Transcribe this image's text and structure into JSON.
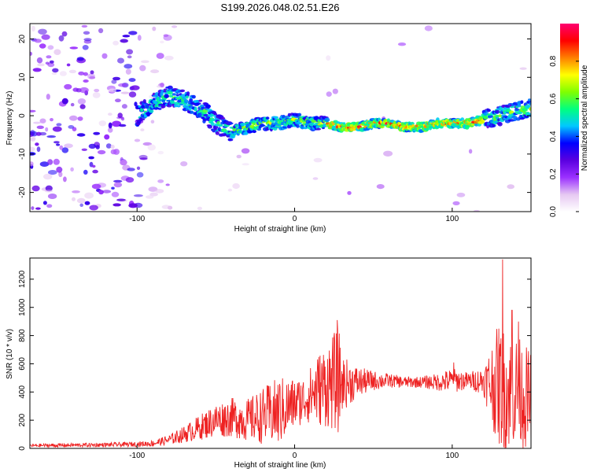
{
  "title": "S199.2026.048.02.51.E26",
  "colors": {
    "snr_line": "#ee2222",
    "spectrum_base": "#8a2be2",
    "frame": "#000000",
    "background": "#ffffff"
  },
  "chart_data": [
    {
      "id": "spectrogram",
      "type": "heatmap",
      "title": "",
      "xlabel": "Height of straight line (km)",
      "ylabel": "Frequency (Hz)",
      "xlim": [
        -168,
        150
      ],
      "ylim": [
        -25,
        24
      ],
      "x_ticks": [
        -100,
        0,
        100
      ],
      "y_ticks": [
        -20,
        -10,
        0,
        10,
        20
      ],
      "colorbar": {
        "label": "Normalized spectral amplitude",
        "range": [
          0,
          1
        ],
        "ticks": [
          "0.0",
          "0.2",
          "0.4",
          "0.6",
          "0.8"
        ],
        "stops": [
          "#ffffff",
          "#e6c8f2",
          "#9b30ff",
          "#5a00e0",
          "#0000ff",
          "#00c8ff",
          "#00ff80",
          "#80ff00",
          "#ffff00",
          "#ff8000",
          "#ff0000",
          "#ff0070"
        ]
      },
      "ridge": {
        "x": [
          -100,
          -90,
          -80,
          -70,
          -60,
          -50,
          -40,
          -30,
          -20,
          -10,
          0,
          10,
          20,
          30,
          40,
          50,
          60,
          70,
          80,
          90,
          100,
          110,
          120,
          130,
          140,
          150
        ],
        "y": [
          0,
          3,
          5,
          4,
          2,
          -2,
          -4,
          -3,
          -2,
          -2,
          -1,
          -2,
          -2,
          -3,
          -3,
          -2,
          -2,
          -3,
          -3,
          -2,
          -2,
          -2,
          -1,
          0,
          1,
          2
        ]
      }
    },
    {
      "id": "snr",
      "type": "line",
      "title": "",
      "xlabel": "Height of straight line (km)",
      "ylabel": "SNR (10 * v/v)",
      "xlim": [
        -168,
        150
      ],
      "ylim": [
        0,
        1350
      ],
      "x_ticks": [
        -100,
        0,
        100
      ],
      "y_ticks": [
        0,
        200,
        400,
        600,
        800,
        1000,
        1200
      ],
      "series": [
        {
          "name": "SNR",
          "x": [
            -168,
            -150,
            -120,
            -100,
            -90,
            -80,
            -70,
            -60,
            -50,
            -40,
            -30,
            -20,
            -10,
            0,
            5,
            10,
            15,
            20,
            25,
            28,
            30,
            40,
            50,
            60,
            70,
            80,
            90,
            100,
            110,
            120,
            125,
            130,
            135,
            140,
            145,
            150
          ],
          "mean": [
            20,
            22,
            25,
            30,
            35,
            60,
            100,
            150,
            200,
            220,
            200,
            230,
            260,
            320,
            340,
            380,
            420,
            450,
            470,
            480,
            460,
            470,
            480,
            480,
            470,
            470,
            470,
            480,
            480,
            480,
            460,
            450,
            400,
            420,
            380,
            330
          ],
          "spread": [
            12,
            14,
            15,
            18,
            22,
            35,
            60,
            90,
            120,
            140,
            150,
            200,
            250,
            180,
            170,
            200,
            260,
            300,
            350,
            380,
            200,
            110,
            70,
            50,
            40,
            40,
            60,
            90,
            60,
            100,
            300,
            450,
            420,
            400,
            380,
            350
          ],
          "peaks": [
            {
              "x": 27,
              "y": 910
            },
            {
              "x": 101,
              "y": 610
            },
            {
              "x": 132,
              "y": 1340
            },
            {
              "x": 138,
              "y": 980
            },
            {
              "x": 142,
              "y": 900
            }
          ]
        }
      ]
    }
  ]
}
